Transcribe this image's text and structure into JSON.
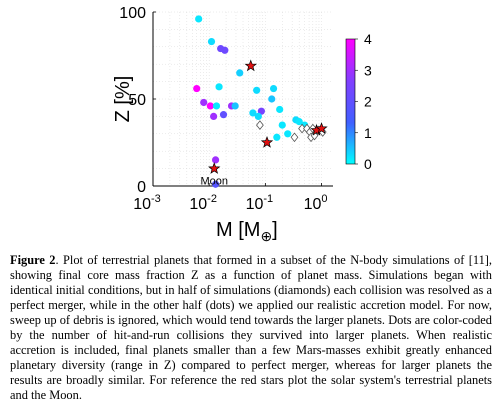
{
  "chart_data": {
    "type": "scatter",
    "x_scale": "log",
    "xlabel": "M [M",
    "xlabel_sub": "⊕",
    "ylabel": "Z [%]",
    "xlim": [
      0.001,
      1.6
    ],
    "ylim": [
      0,
      100
    ],
    "x_ticks": [
      {
        "value": 0.001,
        "base": "10",
        "exp": "-3"
      },
      {
        "value": 0.01,
        "base": "10",
        "exp": "-2"
      },
      {
        "value": 0.1,
        "base": "10",
        "exp": "-1"
      },
      {
        "value": 1,
        "base": "10",
        "exp": "0"
      }
    ],
    "y_ticks": [
      0,
      50,
      100
    ],
    "grid": true,
    "colorbar": {
      "min": 0,
      "max": 4,
      "ticks": [
        0,
        1,
        2,
        3,
        4
      ],
      "colors": [
        "#00ffff",
        "#4060ff",
        "#8040ff",
        "#ff00ff"
      ]
    },
    "series": [
      {
        "marker": "dot",
        "points": [
          {
            "x": 0.0065,
            "y": 96,
            "c": 0.2
          },
          {
            "x": 0.011,
            "y": 83,
            "c": 0.3
          },
          {
            "x": 0.016,
            "y": 79,
            "c": 2.3
          },
          {
            "x": 0.019,
            "y": 78,
            "c": 2.3
          },
          {
            "x": 0.006,
            "y": 56,
            "c": 4
          },
          {
            "x": 0.015,
            "y": 57,
            "c": 0.2
          },
          {
            "x": 0.035,
            "y": 65,
            "c": 0.4
          },
          {
            "x": 0.07,
            "y": 55,
            "c": 0.3
          },
          {
            "x": 0.14,
            "y": 56,
            "c": 0.3
          },
          {
            "x": 0.13,
            "y": 50,
            "c": 0.5
          },
          {
            "x": 0.008,
            "y": 48,
            "c": 3
          },
          {
            "x": 0.0105,
            "y": 46,
            "c": 4
          },
          {
            "x": 0.0135,
            "y": 46,
            "c": 0.2
          },
          {
            "x": 0.025,
            "y": 46,
            "c": 3
          },
          {
            "x": 0.029,
            "y": 46,
            "c": 0.5
          },
          {
            "x": 0.012,
            "y": 40,
            "c": 3
          },
          {
            "x": 0.018,
            "y": 41,
            "c": 2
          },
          {
            "x": 0.06,
            "y": 42,
            "c": 0.3
          },
          {
            "x": 0.085,
            "y": 43,
            "c": 2.5
          },
          {
            "x": 0.075,
            "y": 40,
            "c": 0.3
          },
          {
            "x": 0.18,
            "y": 44,
            "c": 0.2
          },
          {
            "x": 0.2,
            "y": 35,
            "c": 0.2
          },
          {
            "x": 0.16,
            "y": 28,
            "c": 0.2
          },
          {
            "x": 0.35,
            "y": 38,
            "c": 0.3
          },
          {
            "x": 0.4,
            "y": 37,
            "c": 0.2
          },
          {
            "x": 0.25,
            "y": 30,
            "c": 0.2
          },
          {
            "x": 0.5,
            "y": 35,
            "c": 0.2
          },
          {
            "x": 0.013,
            "y": 15,
            "c": 3
          },
          {
            "x": 0.013,
            "y": 1,
            "c": 1.8
          }
        ]
      },
      {
        "marker": "diamond",
        "points": [
          {
            "x": 0.08,
            "y": 35
          },
          {
            "x": 0.45,
            "y": 33
          },
          {
            "x": 0.55,
            "y": 33
          },
          {
            "x": 0.62,
            "y": 31
          },
          {
            "x": 0.7,
            "y": 33
          },
          {
            "x": 0.8,
            "y": 31
          },
          {
            "x": 0.9,
            "y": 32
          },
          {
            "x": 0.33,
            "y": 28
          },
          {
            "x": 0.65,
            "y": 28
          },
          {
            "x": 0.75,
            "y": 29
          },
          {
            "x": 1.05,
            "y": 31
          }
        ]
      },
      {
        "marker": "star",
        "points": [
          {
            "x": 0.055,
            "y": 69
          },
          {
            "x": 0.107,
            "y": 25
          },
          {
            "x": 0.815,
            "y": 32
          },
          {
            "x": 1.0,
            "y": 33
          },
          {
            "x": 0.0123,
            "y": 10
          }
        ]
      }
    ],
    "annotations": [
      {
        "text": "Moon",
        "x": 0.0123,
        "y": 10
      }
    ]
  },
  "caption": {
    "label": "Figure 2",
    "text": ". Plot of terrestrial planets that formed in a subset of the N-body simulations of [11], showing final core mass fraction Z as a function of planet mass. Simulations began with identical initial conditions, but in half of simulations (diamonds) each collision was resolved as a perfect merger, while in the other half (dots) we applied our realistic accretion model. For now, sweep up of debris is ignored, which would tend towards the larger planets. Dots are color-coded by the number of hit-and-run collisions they survived into larger planets. When realistic accretion is included, final planets smaller than a few Mars-masses exhibit greatly enhanced planetary diversity (range in Z) compared to perfect merger, whereas for larger planets the results are broadly similar. For reference the red stars plot the solar system's terrestrial planets and the Moon."
  }
}
